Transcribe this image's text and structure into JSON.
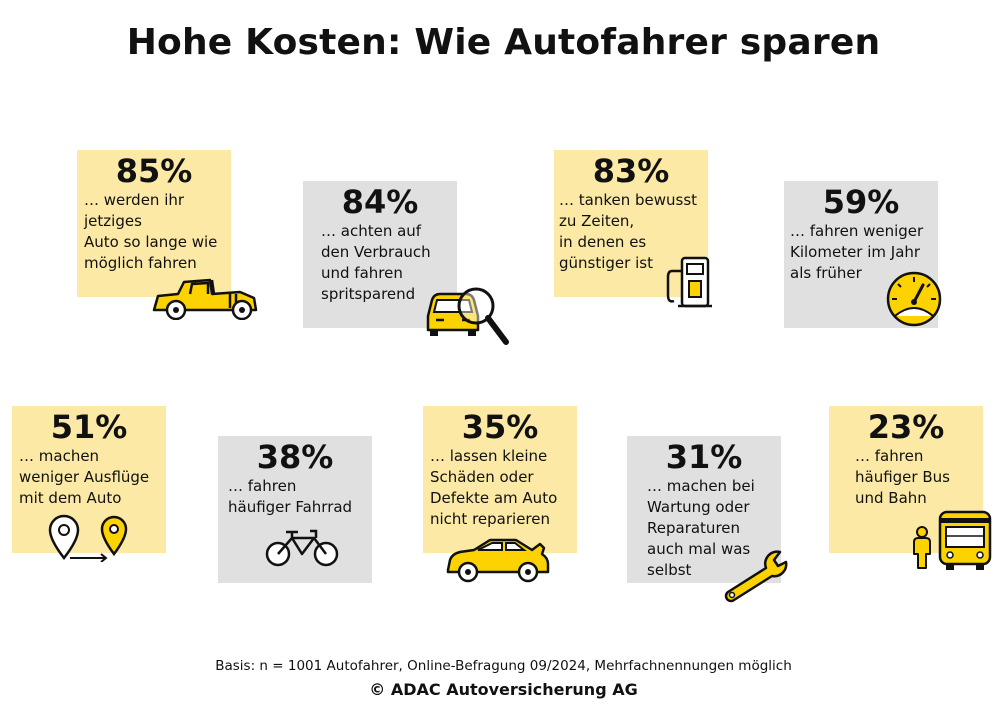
{
  "title": "Hohe Kosten: Wie Autofahrer sparen",
  "chart_data": {
    "type": "infographic",
    "unit": "%",
    "items": [
      {
        "value": 85,
        "label": "85%",
        "text": "… werden ihr\njetziges\nAuto so lange wie\nmöglich fahren",
        "icon": "vintage-car-icon",
        "color": "#fbe9a5"
      },
      {
        "value": 84,
        "label": "84%",
        "text": "… achten auf\nden Verbrauch\nund fahren\nspritsparend",
        "icon": "car-magnifier-icon",
        "color": "#e0e0e0"
      },
      {
        "value": 83,
        "label": "83%",
        "text": "… tanken bewusst\nzu Zeiten,\nin denen es\ngünstiger ist",
        "icon": "fuel-pump-icon",
        "color": "#fbe9a5"
      },
      {
        "value": 59,
        "label": "59%",
        "text": "… fahren weniger\nKilometer im Jahr\nals früher",
        "icon": "speedometer-icon",
        "color": "#e0e0e0"
      },
      {
        "value": 51,
        "label": "51%",
        "text": "… machen\nweniger Ausflüge\nmit dem Auto",
        "icon": "map-pins-icon",
        "color": "#fbe9a5"
      },
      {
        "value": 38,
        "label": "38%",
        "text": "… fahren\nhäufiger Fahrrad",
        "icon": "bicycle-icon",
        "color": "#e0e0e0"
      },
      {
        "value": 35,
        "label": "35%",
        "text": "… lassen kleine\nSchäden oder\nDefekte am Auto\nnicht reparieren",
        "icon": "car-open-hood-icon",
        "color": "#fbe9a5"
      },
      {
        "value": 31,
        "label": "31%",
        "text": "… machen bei\nWartung oder\nReparaturen\nauch mal was\nselbst",
        "icon": "wrench-icon",
        "color": "#e0e0e0"
      },
      {
        "value": 23,
        "label": "23%",
        "text": "… fahren\nhäufiger Bus\nund Bahn",
        "icon": "bus-person-icon",
        "color": "#fbe9a5"
      }
    ]
  },
  "footer": {
    "basis": "Basis: n = 1001 Autofahrer, Online-Befragung 09/2024, Mehrfachnennungen möglich",
    "copyright": "© ADAC Autoversicherung AG"
  },
  "colors": {
    "accent_yellow": "#fcd200",
    "box_yellow": "#fbe9a5",
    "box_grey": "#e0e0e0",
    "ink": "#111111"
  }
}
